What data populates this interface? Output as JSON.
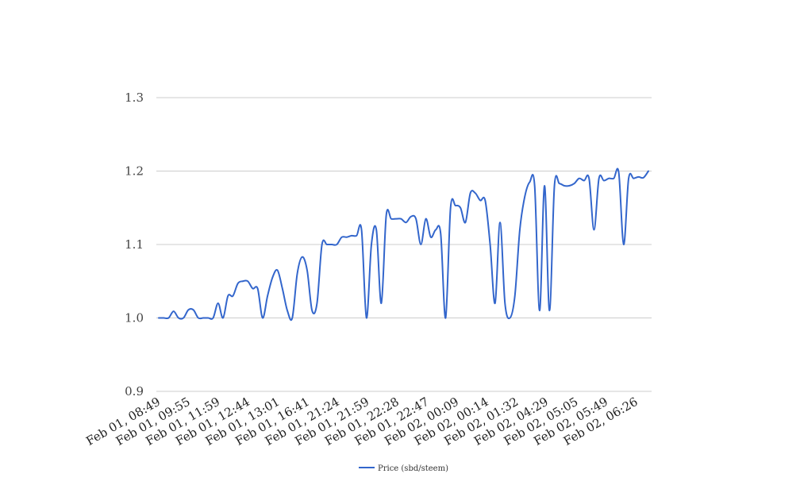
{
  "chart_data": {
    "type": "line",
    "title": "",
    "xlabel": "",
    "ylabel": "",
    "ylim": [
      0.9,
      1.3
    ],
    "y_ticks": [
      "0.9",
      "1.0",
      "1.1",
      "1.2",
      "1.3"
    ],
    "grid": true,
    "legend_position": "bottom",
    "x_tick_labels": [
      "Feb 01, 08:49",
      "Feb 01, 09:55",
      "Feb 01, 11:59",
      "Feb 01, 12:44",
      "Feb 01, 13:01",
      "Feb 01, 16:41",
      "Feb 01, 21:24",
      "Feb 01, 21:59",
      "Feb 01, 22:28",
      "Feb 01, 22:47",
      "Feb 02, 00:09",
      "Feb 02, 00:14",
      "Feb 02, 01:32",
      "Feb 02, 04:29",
      "Feb 02, 05:05",
      "Feb 02, 05:49",
      "Feb 02, 06:26"
    ],
    "series": [
      {
        "name": "Price (sbd/steem)",
        "color": "#3366cc",
        "values": [
          1.0,
          1.0,
          1.0,
          1.009,
          1.0,
          1.0,
          1.011,
          1.011,
          1.0,
          1.0,
          1.0,
          1.0,
          1.02,
          1.0,
          1.03,
          1.03,
          1.047,
          1.05,
          1.05,
          1.04,
          1.04,
          1.0,
          1.03,
          1.055,
          1.065,
          1.04,
          1.01,
          1.0,
          1.06,
          1.083,
          1.065,
          1.01,
          1.02,
          1.1,
          1.1,
          1.1,
          1.1,
          1.11,
          1.11,
          1.112,
          1.112,
          1.12,
          1.0,
          1.1,
          1.12,
          1.02,
          1.14,
          1.135,
          1.135,
          1.135,
          1.13,
          1.138,
          1.135,
          1.1,
          1.135,
          1.11,
          1.12,
          1.115,
          1.0,
          1.15,
          1.153,
          1.15,
          1.13,
          1.17,
          1.17,
          1.16,
          1.16,
          1.1,
          1.02,
          1.13,
          1.02,
          1.0,
          1.03,
          1.12,
          1.165,
          1.185,
          1.18,
          1.01,
          1.18,
          1.01,
          1.18,
          1.183,
          1.18,
          1.18,
          1.183,
          1.19,
          1.187,
          1.19,
          1.12,
          1.19,
          1.187,
          1.19,
          1.19,
          1.198,
          1.1,
          1.19,
          1.19,
          1.192,
          1.191,
          1.2
        ]
      }
    ]
  }
}
